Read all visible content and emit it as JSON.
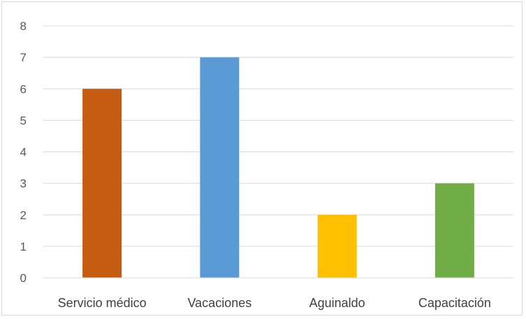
{
  "chart_data": {
    "type": "bar",
    "categories": [
      "Servicio médico",
      "Vacaciones",
      "Aguinaldo",
      "Capacitación"
    ],
    "values": [
      6,
      7,
      2,
      3
    ],
    "colors": [
      "#c55a11",
      "#5b9bd5",
      "#ffc000",
      "#70ad47"
    ],
    "ylim": [
      0,
      8
    ],
    "yticks": [
      "0",
      "1",
      "2",
      "3",
      "4",
      "5",
      "6",
      "7",
      "8"
    ],
    "grid": true,
    "legend": "none"
  }
}
